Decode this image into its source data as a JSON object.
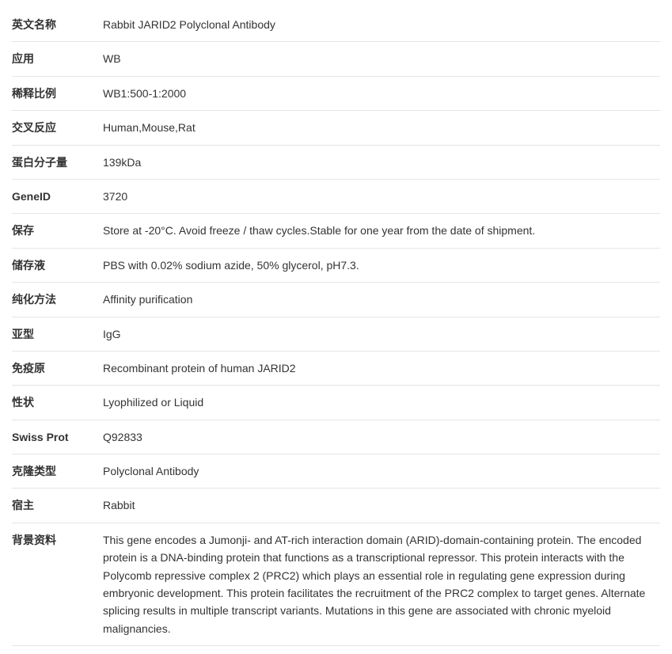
{
  "rows": [
    {
      "label": "英文名称",
      "value": "Rabbit JARID2 Polyclonal Antibody"
    },
    {
      "label": "应用",
      "value": "WB"
    },
    {
      "label": "稀释比例",
      "value": "WB1:500-1:2000"
    },
    {
      "label": "交叉反应",
      "value": "Human,Mouse,Rat"
    },
    {
      "label": "蛋白分子量",
      "value": "139kDa"
    },
    {
      "label": "GeneID",
      "value": "3720"
    },
    {
      "label": "保存",
      "value": "Store at -20°C. Avoid freeze / thaw cycles.Stable for one year from the date of shipment."
    },
    {
      "label": "储存液",
      "value": "PBS with 0.02% sodium azide, 50% glycerol, pH7.3."
    },
    {
      "label": "纯化方法",
      "value": "Affinity purification"
    },
    {
      "label": "亚型",
      "value": "IgG"
    },
    {
      "label": "免疫原",
      "value": "Recombinant protein of human JARID2"
    },
    {
      "label": "性状",
      "value": "Lyophilized or Liquid"
    },
    {
      "label": "Swiss Prot",
      "value": "Q92833"
    },
    {
      "label": "克隆类型",
      "value": "Polyclonal Antibody"
    },
    {
      "label": "宿主",
      "value": "Rabbit"
    },
    {
      "label": "背景资料",
      "value": "This gene encodes a Jumonji- and AT-rich interaction domain (ARID)-domain-containing protein. The encoded protein is a DNA-binding protein that functions as a transcriptional repressor. This protein interacts with the Polycomb repressive complex 2 (PRC2) which plays an essential role in regulating gene expression during embryonic development. This protein facilitates the recruitment of the PRC2 complex to target genes. Alternate splicing results in multiple transcript variants. Mutations in this gene are associated with chronic myeloid malignancies."
    }
  ],
  "style": {
    "background_color": "#ffffff",
    "text_color": "#333333",
    "border_color": "#e5e5e5",
    "label_width": 115,
    "font_size": 14,
    "row_padding": 10
  }
}
